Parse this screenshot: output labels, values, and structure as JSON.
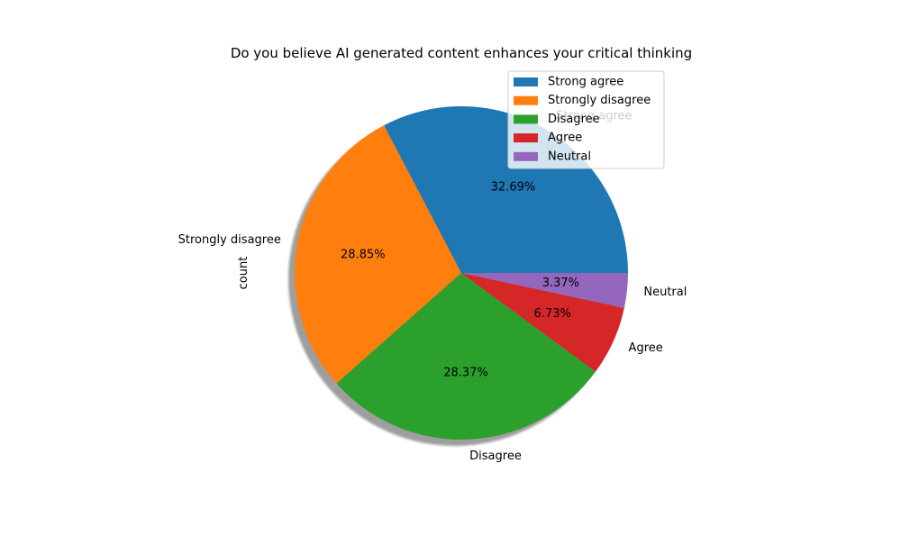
{
  "chart_data": {
    "type": "pie",
    "title": "Do you believe AI generated content enhances your critical thinking",
    "ylabel": "count",
    "slices": [
      {
        "label": "Strong agree",
        "percent": 32.69,
        "pct_text": "32.69%",
        "color": "#1f77b4"
      },
      {
        "label": "Strongly disagree",
        "percent": 28.85,
        "pct_text": "28.85%",
        "color": "#ff7f0e"
      },
      {
        "label": "Disagree",
        "percent": 28.37,
        "pct_text": "28.37%",
        "color": "#2ca02c"
      },
      {
        "label": "Agree",
        "percent": 6.73,
        "pct_text": "6.73%",
        "color": "#d62728"
      },
      {
        "label": "Neutral",
        "percent": 3.37,
        "pct_text": "3.37%",
        "color": "#9467bd"
      }
    ],
    "start_angle_deg": 0,
    "direction": "counterclockwise",
    "shadow": true,
    "legend": {
      "placement": "upper-right",
      "entries": [
        "Strong agree",
        "Strongly disagree",
        "Disagree",
        "Agree",
        "Neutral"
      ]
    }
  }
}
